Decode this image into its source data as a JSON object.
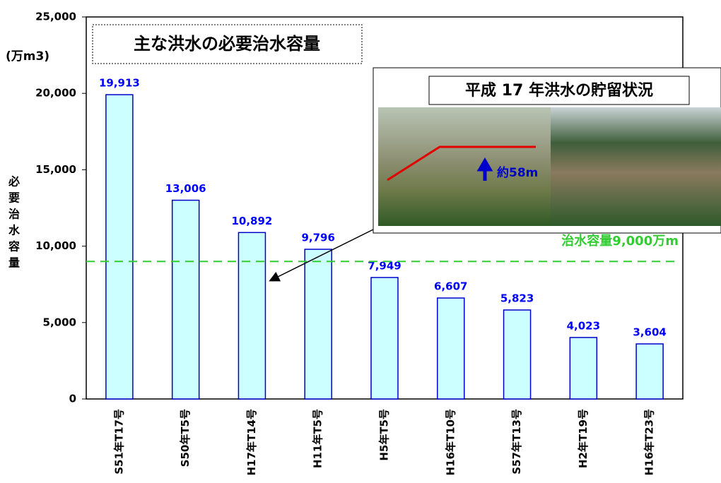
{
  "chart_data": {
    "type": "bar",
    "title": "主な洪水の必要治水容量",
    "y_unit": "(万m3)",
    "y_label": "必要治水容量",
    "categories": [
      "S51年T17号",
      "S50年T5号",
      "H17年T14号",
      "H11年T5号",
      "H5年T5号",
      "H16年T10号",
      "S57年T13号",
      "H2年T19号",
      "H16年T23号"
    ],
    "values": [
      19913,
      13006,
      10892,
      9796,
      7949,
      6607,
      5823,
      4023,
      3604
    ],
    "value_labels": [
      "19,913",
      "13,006",
      "10,892",
      "9,796",
      "7,949",
      "6,607",
      "5,823",
      "4,023",
      "3,604"
    ],
    "color": "#ccffff",
    "edge_color": "#0000cc",
    "label_color": "#0000ff",
    "ylim": [
      0,
      25000
    ],
    "yticks": [
      0,
      {
        "value": 5000,
        "label": "5,000"
      },
      {
        "value": 10000,
        "label": "10,000"
      },
      {
        "value": 15000,
        "label": "15,000"
      },
      {
        "value": 20000,
        "label": "20,000"
      },
      {
        "value": 25000,
        "label": "25,000"
      }
    ],
    "reference_line": {
      "value": 9000,
      "label": "治水容量9,000万m",
      "color": "#33cc33"
    },
    "inset": {
      "title": "平成 17 年洪水の貯留状況",
      "annotation": "約58m"
    }
  }
}
